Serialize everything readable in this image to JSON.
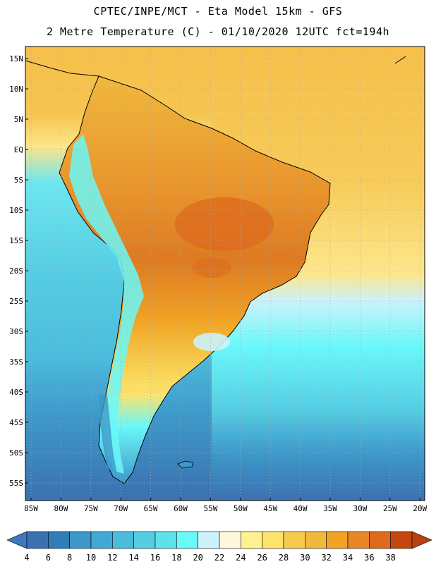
{
  "header": {
    "line1": "CPTEC/INPE/MCT -  Eta Model 15km - GFS",
    "line2": "2 Metre Temperature (C) - 01/10/2020 12UTC fct=194h"
  },
  "map": {
    "lat_labels": [
      "15N",
      "10N",
      "5N",
      "EQ",
      "5S",
      "10S",
      "15S",
      "20S",
      "25S",
      "30S",
      "35S",
      "40S",
      "45S",
      "50S",
      "55S"
    ],
    "lon_labels": [
      "85W",
      "80W",
      "75W",
      "70W",
      "65W",
      "60W",
      "55W",
      "50W",
      "45W",
      "40W",
      "35W",
      "30W",
      "25W",
      "20W"
    ]
  },
  "colorbar": {
    "levels": [
      "4",
      "6",
      "8",
      "10",
      "12",
      "14",
      "16",
      "18",
      "20",
      "22",
      "24",
      "26",
      "28",
      "30",
      "32",
      "34",
      "36",
      "38"
    ],
    "colors": [
      "#3b71b0",
      "#2f7eb8",
      "#3d97c9",
      "#42a8d4",
      "#4cbcdc",
      "#56cde3",
      "#5de2ea",
      "#6af8f9",
      "#ccf2fb",
      "#fff8dc",
      "#fff090",
      "#fde26c",
      "#f6cc4e",
      "#f0b83c",
      "#f0a324",
      "#e8862a",
      "#dd6a1d",
      "#c4470f"
    ],
    "under_color": "#3b79c0",
    "over_color": "#b8410f"
  }
}
